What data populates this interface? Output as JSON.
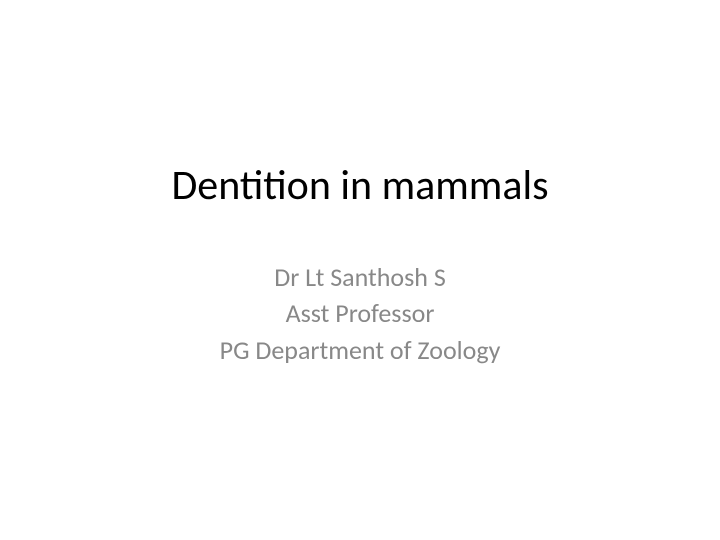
{
  "slide": {
    "title": "Dentition in mammals",
    "subtitle_lines": [
      "Dr Lt Santhosh S",
      "Asst Professor",
      "PG Department of Zoology"
    ],
    "title_color": "#000000",
    "subtitle_color": "#888888",
    "background_color": "#ffffff",
    "title_fontsize": 42,
    "subtitle_fontsize": 26,
    "font_family": "Calibri"
  }
}
